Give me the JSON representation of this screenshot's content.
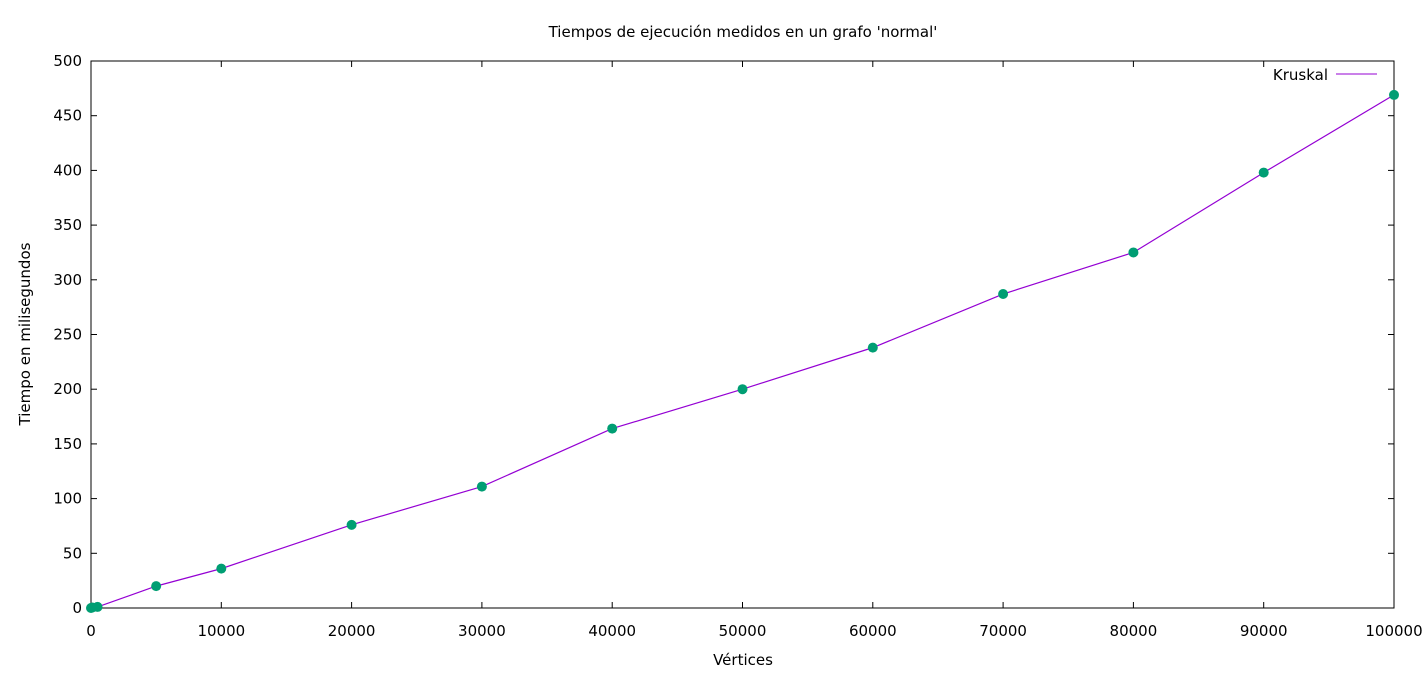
{
  "chart_data": {
    "type": "line",
    "title": "Tiempos de ejecución medidos en un grafo 'normal'",
    "xlabel": "Vértices",
    "ylabel": "Tiempo en milisegundos",
    "xlim": [
      0,
      100000
    ],
    "ylim": [
      0,
      500
    ],
    "xticks": [
      0,
      10000,
      20000,
      30000,
      40000,
      50000,
      60000,
      70000,
      80000,
      90000,
      100000
    ],
    "yticks": [
      0,
      50,
      100,
      150,
      200,
      250,
      300,
      350,
      400,
      450,
      500
    ],
    "grid": false,
    "legend_position": "top-right",
    "series": [
      {
        "name": "Kruskal",
        "line_color": "#9400d3",
        "marker_color": "#009e73",
        "x": [
          0,
          100,
          500,
          5000,
          10000,
          20000,
          30000,
          40000,
          50000,
          60000,
          70000,
          80000,
          90000,
          100000
        ],
        "y": [
          0,
          0.5,
          1,
          20,
          36,
          76,
          111,
          164,
          200,
          238,
          287,
          325,
          398,
          469
        ]
      }
    ]
  }
}
